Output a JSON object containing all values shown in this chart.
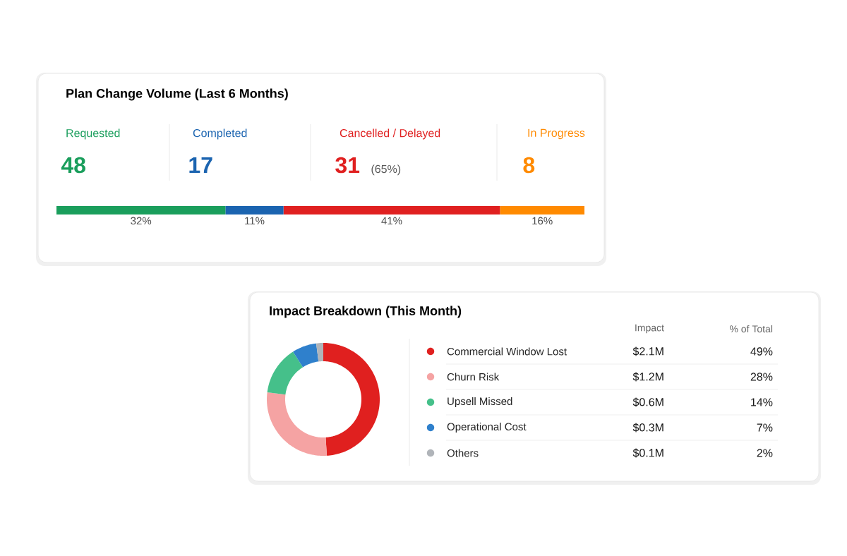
{
  "chart_data": [
    {
      "type": "bar",
      "orientation": "horizontal",
      "stacked": true,
      "title": "Plan Change Volume (Last 6 Months)",
      "categories": [
        null
      ],
      "xlim": [
        0,
        100
      ],
      "tick_labels": false,
      "series": [
        {
          "name": "Requested",
          "color": "#1a9e5c",
          "values": [
            32
          ],
          "value_labels": [
            "32%"
          ]
        },
        {
          "name": "Completed",
          "color": "#1b64b0",
          "values": [
            11
          ],
          "value_labels": [
            "11%"
          ]
        },
        {
          "name": "Cancelled / Delayed",
          "color": "#e02020",
          "values": [
            41
          ],
          "value_labels": [
            "41%"
          ]
        },
        {
          "name": "In Progress",
          "color": "#ff8a00",
          "values": [
            16
          ],
          "value_labels": [
            "16%"
          ]
        }
      ],
      "annotations": [
        "48",
        "17",
        "31",
        "(65%)",
        "8"
      ]
    },
    {
      "type": "donut",
      "title": "Impact Breakdown (This Month)",
      "legend": "right",
      "categories": [
        "Commercial Window Lost",
        "Churn Risk",
        "Upsell Missed",
        "Operational Cost",
        "Others"
      ],
      "values": [
        49,
        28,
        14,
        7,
        2
      ],
      "colors": [
        "#e0201f",
        "#f5a3a3",
        "#45c08a",
        "#2f80cc",
        "#b0b4b9"
      ],
      "value_labels": [
        "49%",
        "28%",
        "14%",
        "7%",
        "2%"
      ],
      "annotations": [
        "Impact",
        "% of Total",
        "$2.1M",
        "$1.2M",
        "$0.6M",
        "$0.3M",
        "$0.1M"
      ]
    }
  ]
}
